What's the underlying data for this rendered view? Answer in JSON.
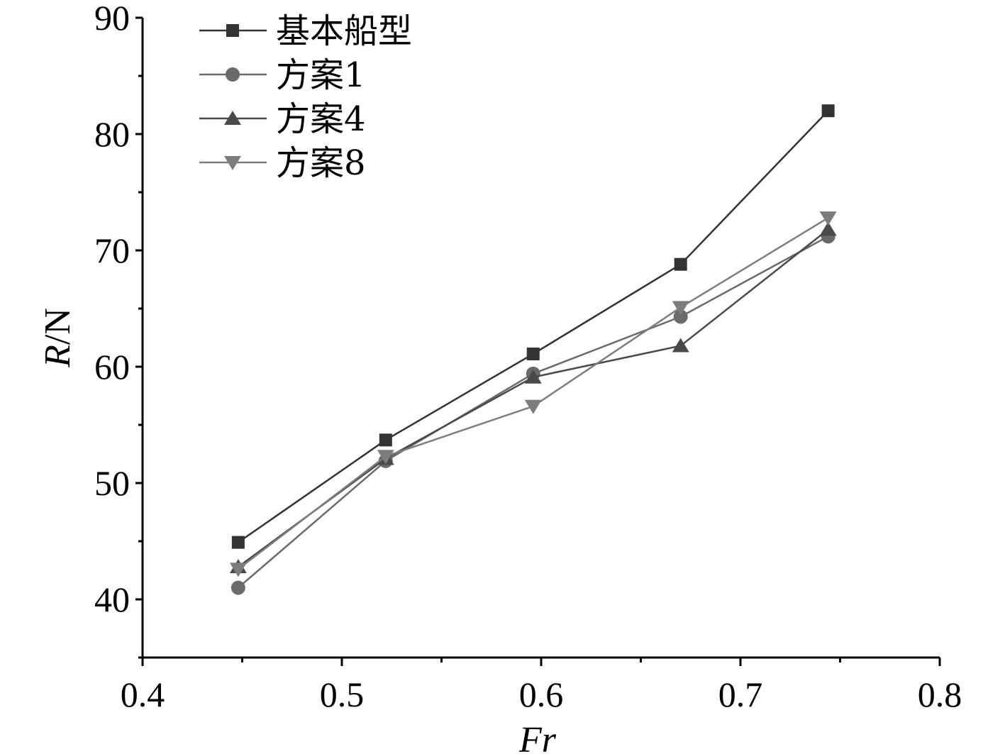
{
  "chart_data": {
    "type": "line",
    "x": [
      0.448,
      0.522,
      0.596,
      0.67,
      0.744
    ],
    "series": [
      {
        "name": "基本船型",
        "values": [
          44.9,
          53.7,
          61.1,
          68.8,
          82.0
        ],
        "marker": "square",
        "color": "#333333"
      },
      {
        "name": "方案1",
        "values": [
          41.0,
          51.9,
          59.4,
          64.3,
          71.2
        ],
        "marker": "circle",
        "color": "#6a6a6a"
      },
      {
        "name": "方案4",
        "values": [
          42.8,
          52.1,
          59.1,
          61.8,
          71.8
        ],
        "marker": "triangle-up",
        "color": "#4a4a4a"
      },
      {
        "name": "方案8",
        "values": [
          42.6,
          52.3,
          56.6,
          65.1,
          72.8
        ],
        "marker": "triangle-down",
        "color": "#7d7d7d"
      }
    ],
    "xlabel": "Fr",
    "ylabel_italic": "R",
    "ylabel_unit": "/N",
    "xlim": [
      0.4,
      0.8
    ],
    "ylim": [
      35,
      90
    ],
    "xticks": [
      0.4,
      0.5,
      0.6,
      0.7,
      0.8
    ],
    "xtick_labels": [
      "0.4",
      "0.5",
      "0.6",
      "0.7",
      "0.8"
    ],
    "yticks": [
      40,
      50,
      60,
      70,
      80,
      90
    ],
    "ytick_labels": [
      "40",
      "50",
      "60",
      "70",
      "80",
      "90"
    ],
    "grid": false,
    "legend_position": "top-left"
  }
}
